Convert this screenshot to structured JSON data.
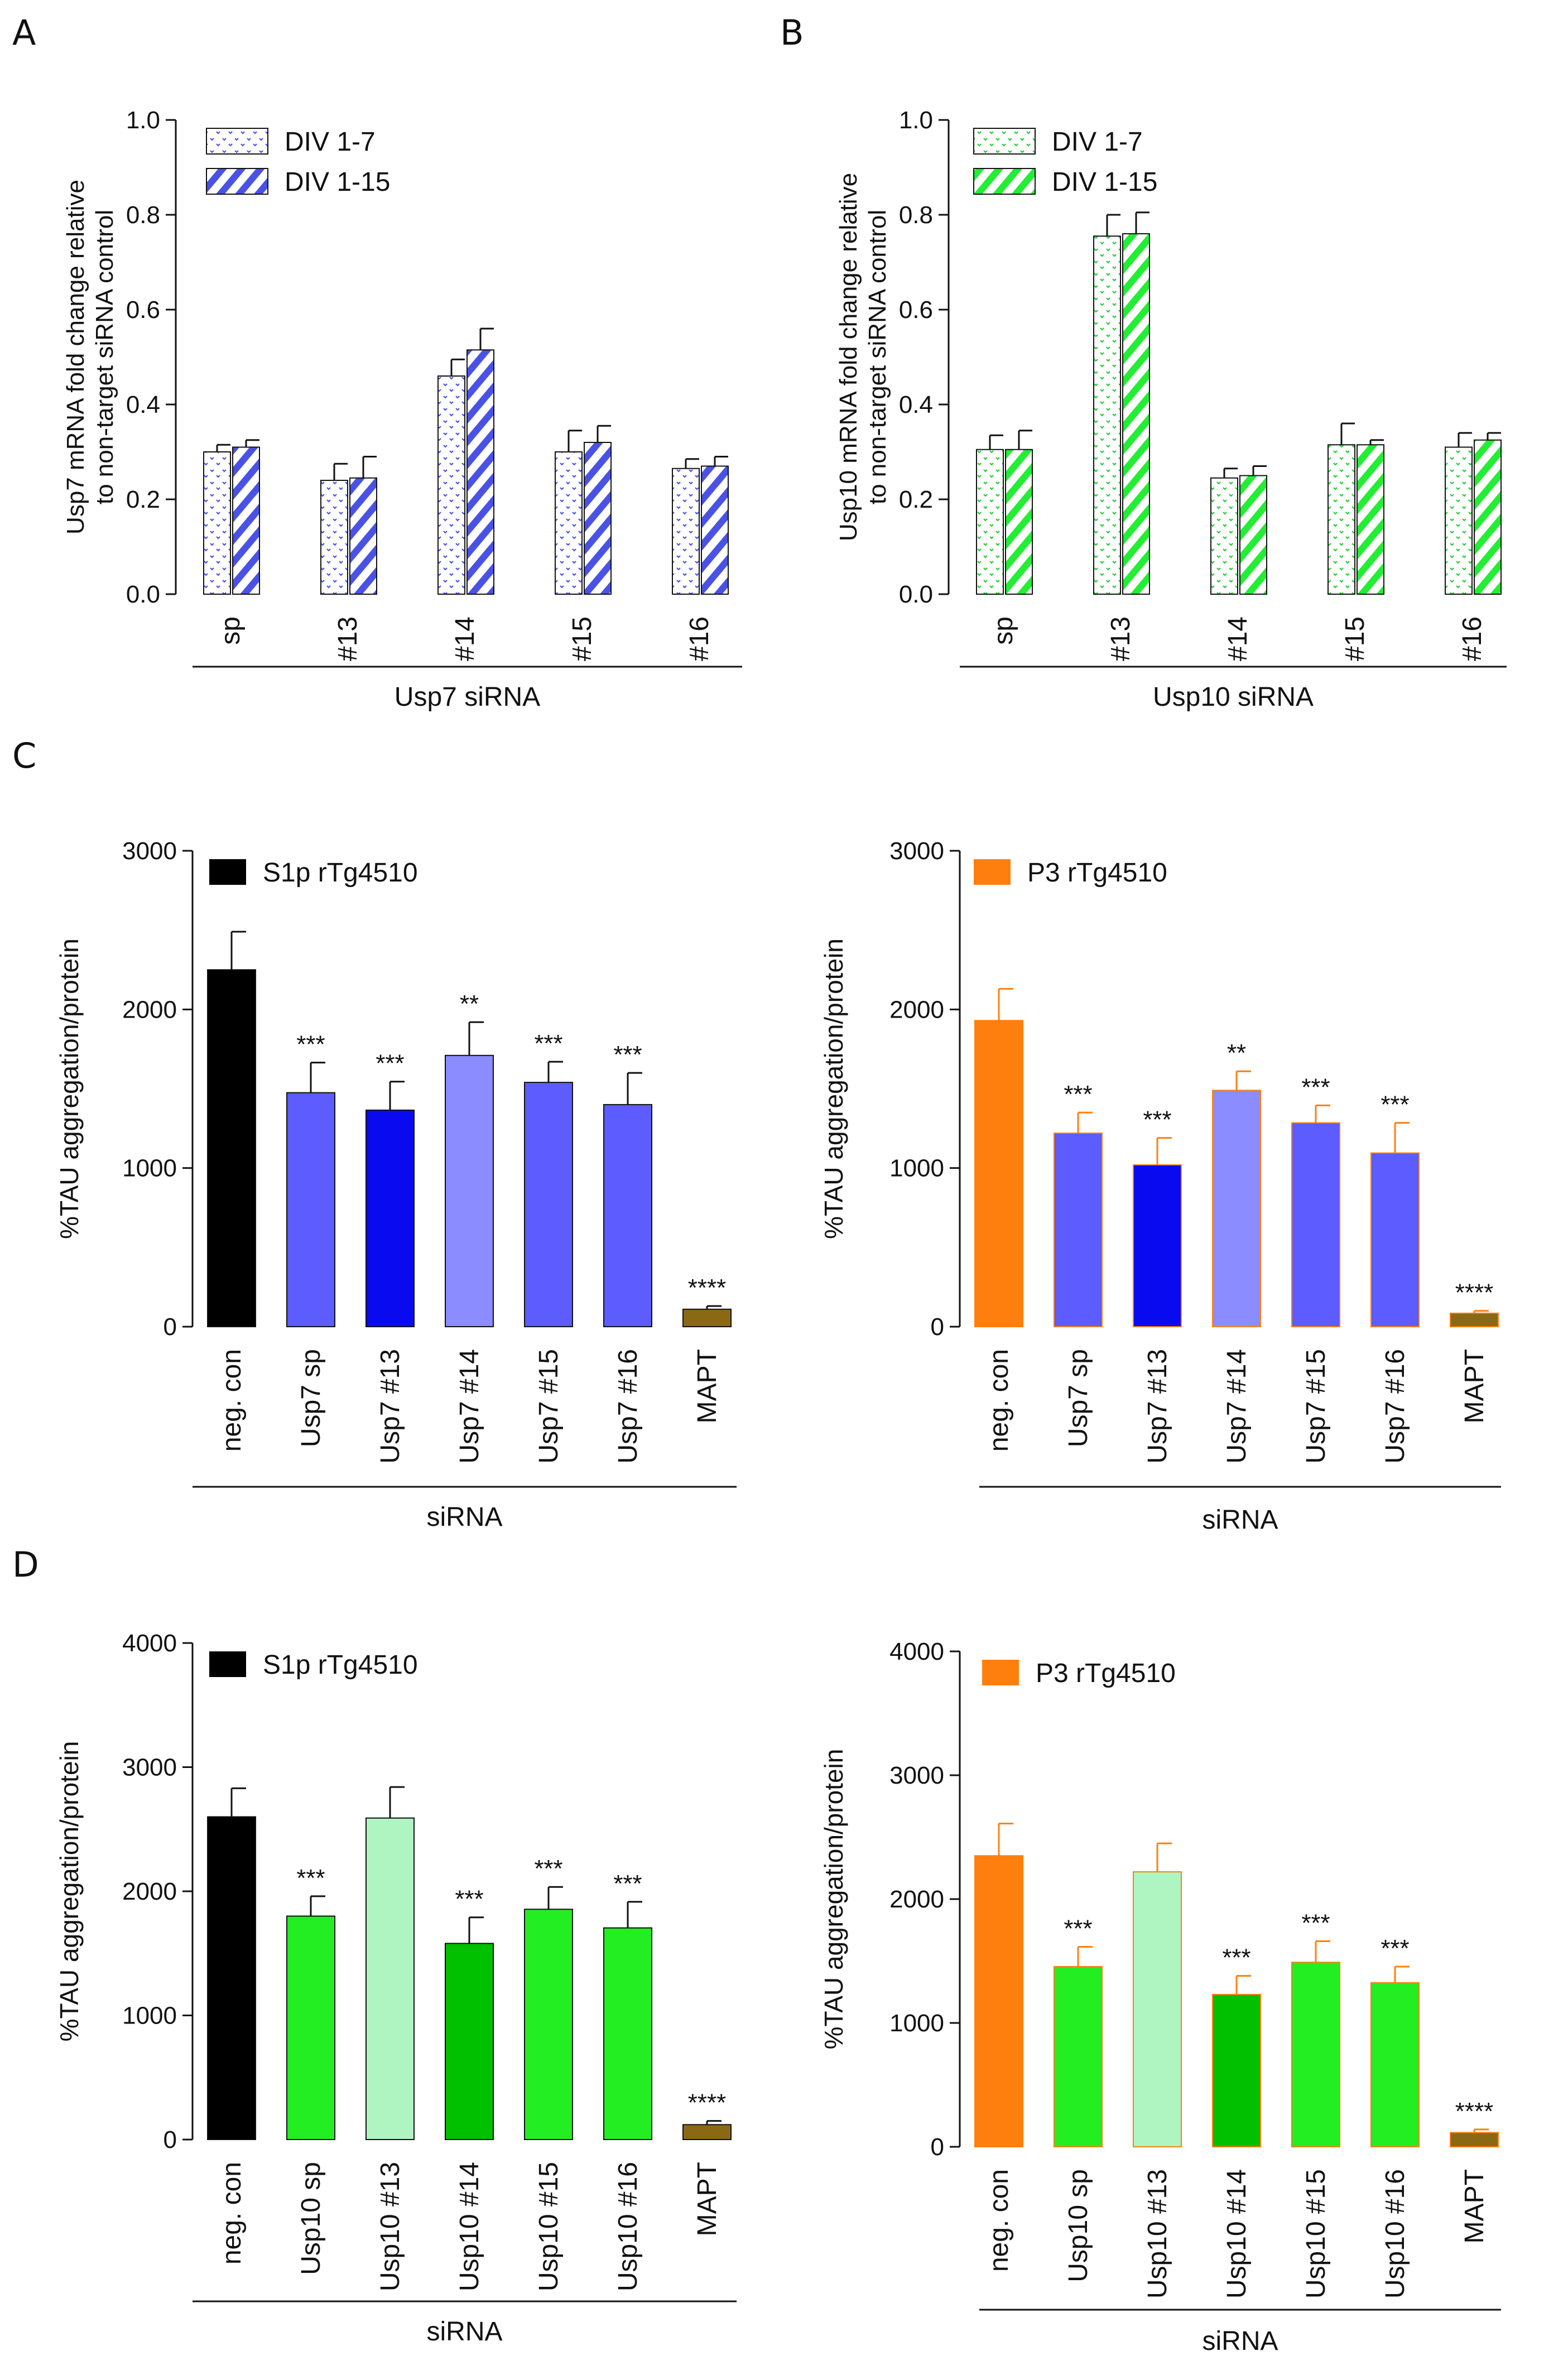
{
  "panel_letters": [
    "A",
    "B",
    "C",
    "D"
  ],
  "colors": {
    "usp7_dots": "#4a52e6",
    "usp10_dots": "#22cc33",
    "black": "#000000",
    "orange": "#ff7f0e",
    "usp7_mid": "#5c5cff",
    "usp7_dark": "#0a0af0",
    "usp7_light": "#8a8cff",
    "usp10_mid": "#22ee22",
    "usp10_light": "#aef5c2",
    "usp10_dark": "#00c000",
    "mapt": "#8b6914"
  },
  "chart_data": [
    {
      "id": "A",
      "type": "bar",
      "categories": [
        "sp",
        "#13",
        "#14",
        "#15",
        "#16"
      ],
      "series": [
        {
          "name": "DIV 1-7",
          "values": [
            0.3,
            0.24,
            0.46,
            0.3,
            0.265
          ],
          "errors": [
            0.015,
            0.035,
            0.035,
            0.045,
            0.02
          ],
          "pattern": "dots",
          "color": "#4a52e6"
        },
        {
          "name": "DIV 1-15",
          "values": [
            0.31,
            0.245,
            0.515,
            0.32,
            0.27
          ],
          "errors": [
            0.015,
            0.045,
            0.045,
            0.035,
            0.02
          ],
          "pattern": "stripes",
          "color": "#4a52e6"
        }
      ],
      "ylabel_lines": [
        "Usp7 mRNA fold change relative",
        "to non-target siRNA control"
      ],
      "xlabel": "Usp7 siRNA",
      "ylim": [
        0,
        1.0
      ],
      "yticks": [
        "0.0",
        "0.2",
        "0.4",
        "0.6",
        "0.8",
        "1.0"
      ]
    },
    {
      "id": "B",
      "type": "bar",
      "categories": [
        "sp",
        "#13",
        "#14",
        "#15",
        "#16"
      ],
      "series": [
        {
          "name": "DIV 1-7",
          "values": [
            0.305,
            0.755,
            0.245,
            0.315,
            0.31
          ],
          "errors": [
            0.03,
            0.045,
            0.02,
            0.045,
            0.03
          ],
          "pattern": "dots",
          "color": "#22cc33"
        },
        {
          "name": "DIV 1-15",
          "values": [
            0.305,
            0.76,
            0.25,
            0.315,
            0.325
          ],
          "errors": [
            0.04,
            0.045,
            0.02,
            0.01,
            0.015
          ],
          "pattern": "stripes",
          "color": "#22cc33"
        }
      ],
      "ylabel_lines": [
        "Usp10 mRNA fold change relative",
        "to non-target siRNA control"
      ],
      "xlabel": "Usp10 siRNA",
      "ylim": [
        0,
        1.0
      ],
      "yticks": [
        "0.0",
        "0.2",
        "0.4",
        "0.6",
        "0.8",
        "1.0"
      ]
    },
    {
      "id": "C-left",
      "type": "bar",
      "categories": [
        "neg. con",
        "Usp7 sp",
        "Usp7 #13",
        "Usp7 #14",
        "Usp7 #15",
        "Usp7 #16",
        "MAPT"
      ],
      "values": [
        2250,
        1475,
        1365,
        1710,
        1540,
        1400,
        110
      ],
      "errors": [
        240,
        190,
        180,
        210,
        130,
        200,
        20
      ],
      "significance": [
        "",
        "***",
        "***",
        "**",
        "***",
        "***",
        "****"
      ],
      "bar_colors": [
        "#000000",
        "#5c5cff",
        "#0a0af0",
        "#8a8cff",
        "#5c5cff",
        "#5c5cff",
        "#8b6914"
      ],
      "legend": "S1p rTg4510",
      "legend_color": "#000000",
      "ylabel": "%TAU aggregation/protein",
      "xlabel": "siRNA",
      "ylim": [
        0,
        3000
      ],
      "yticks": [
        "0",
        "1000",
        "2000",
        "3000"
      ]
    },
    {
      "id": "C-right",
      "type": "bar",
      "categories": [
        "neg. con",
        "Usp7 sp",
        "Usp7 #13",
        "Usp7 #14",
        "Usp7 #15",
        "Usp7 #16",
        "MAPT"
      ],
      "values": [
        1930,
        1220,
        1020,
        1490,
        1285,
        1095,
        85
      ],
      "errors": [
        200,
        130,
        170,
        120,
        110,
        190,
        15
      ],
      "significance": [
        "",
        "***",
        "***",
        "**",
        "***",
        "***",
        "****"
      ],
      "bar_colors": [
        "#ff7f0e",
        "#5c5cff",
        "#0a0af0",
        "#8a8cff",
        "#5c5cff",
        "#5c5cff",
        "#8b6914"
      ],
      "legend": "P3 rTg4510",
      "legend_color": "#ff7f0e",
      "ylabel": "%TAU aggregation/protein",
      "xlabel": "siRNA",
      "ylim": [
        0,
        3000
      ],
      "yticks": [
        "0",
        "1000",
        "2000",
        "3000"
      ]
    },
    {
      "id": "D-left",
      "type": "bar",
      "categories": [
        "neg. con",
        "Usp10 sp",
        "Usp10 #13",
        "Usp10 #14",
        "Usp10 #15",
        "Usp10 #16",
        "MAPT"
      ],
      "values": [
        2600,
        1800,
        2590,
        1580,
        1855,
        1705,
        120
      ],
      "errors": [
        230,
        160,
        250,
        210,
        180,
        210,
        30
      ],
      "significance": [
        "",
        "***",
        "",
        "***",
        "***",
        "***",
        "****"
      ],
      "bar_colors": [
        "#000000",
        "#22ee22",
        "#aef5c2",
        "#00c000",
        "#22ee22",
        "#22ee22",
        "#8b6914"
      ],
      "legend": "S1p rTg4510",
      "legend_color": "#000000",
      "ylabel": "%TAU aggregation/protein",
      "xlabel": "siRNA",
      "ylim": [
        0,
        4000
      ],
      "yticks": [
        "0",
        "1000",
        "2000",
        "3000",
        "4000"
      ]
    },
    {
      "id": "D-right",
      "type": "bar",
      "categories": [
        "neg. con",
        "Usp10 sp",
        "Usp10 #13",
        "Usp10 #14",
        "Usp10 #15",
        "Usp10 #16",
        "MAPT"
      ],
      "values": [
        2350,
        1455,
        2220,
        1230,
        1490,
        1325,
        115
      ],
      "errors": [
        260,
        160,
        230,
        150,
        170,
        130,
        25
      ],
      "significance": [
        "",
        "***",
        "",
        "***",
        "***",
        "***",
        "****"
      ],
      "bar_colors": [
        "#ff7f0e",
        "#22ee22",
        "#aef5c2",
        "#00c000",
        "#22ee22",
        "#22ee22",
        "#8b6914"
      ],
      "legend": "P3 rTg4510",
      "legend_color": "#ff7f0e",
      "ylabel": "%TAU aggregation/protein",
      "xlabel": "siRNA",
      "ylim": [
        0,
        4000
      ],
      "yticks": [
        "0",
        "1000",
        "2000",
        "3000",
        "4000"
      ]
    }
  ]
}
